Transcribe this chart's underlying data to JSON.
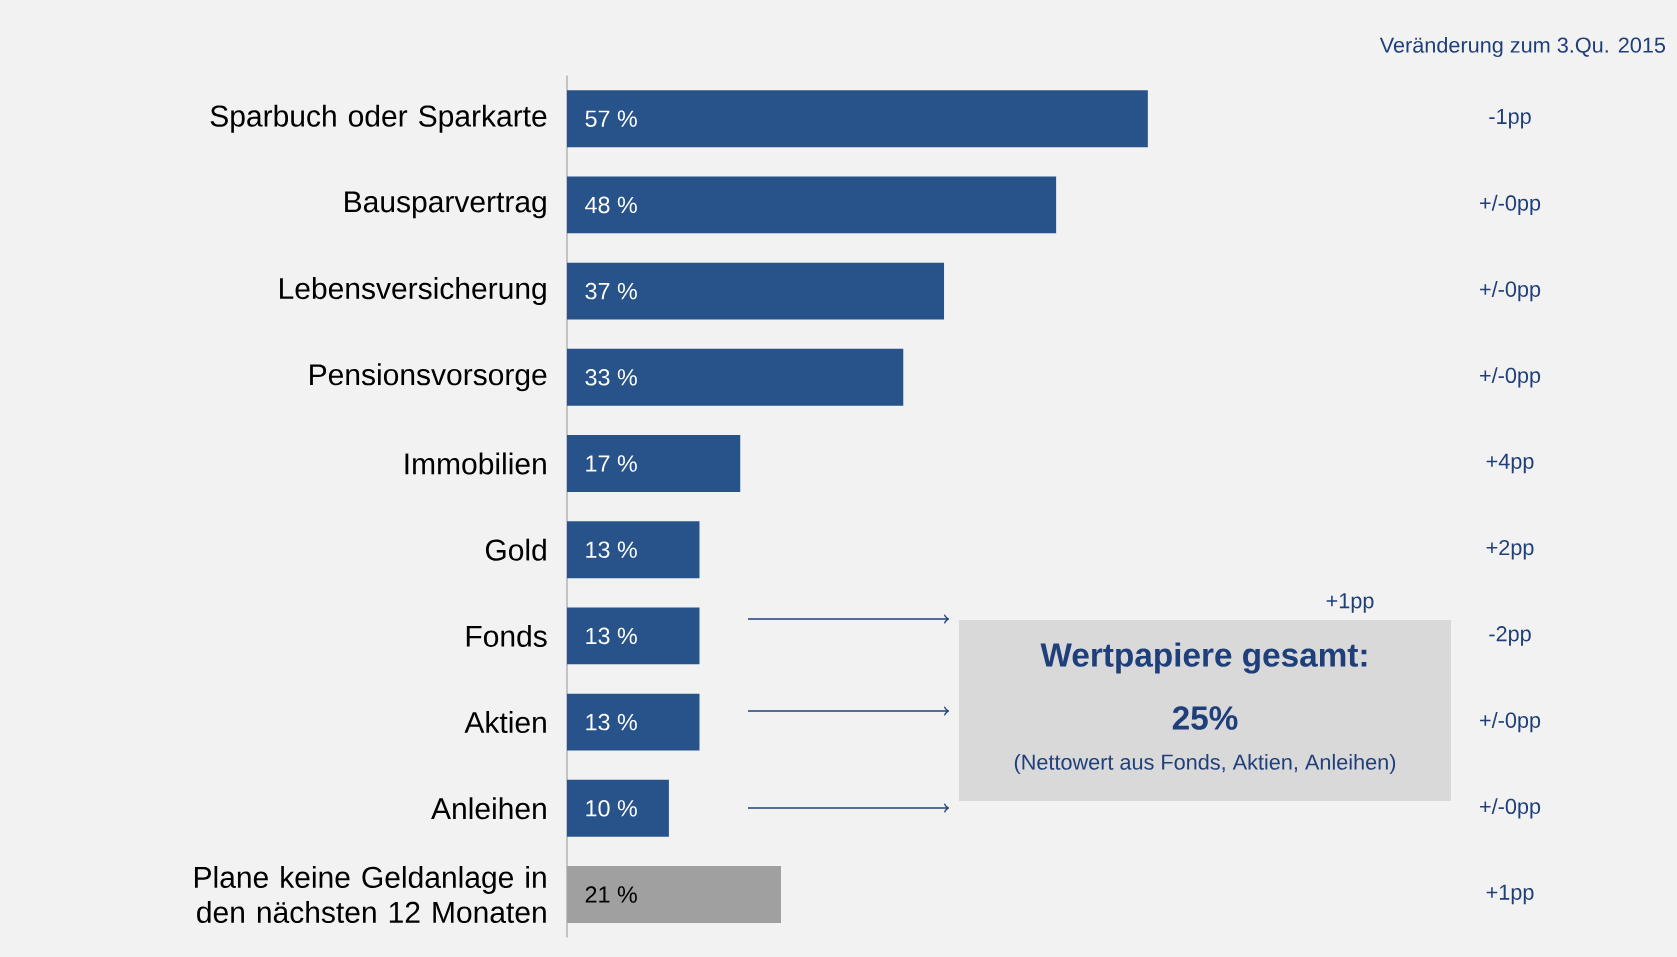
{
  "chart_data": {
    "type": "bar",
    "orientation": "horizontal",
    "tick_labels": "y",
    "categories": [
      "Sparbuch oder Sparkarte",
      "Bausparvertrag",
      "Lebensversicherung",
      "Pensionsvorsorge",
      "Immobilien",
      "Gold",
      "Fonds",
      "Aktien",
      "Anleihen",
      "Plane keine Geldanlage in den nächsten 12 Monaten"
    ],
    "values": [
      57,
      48,
      37,
      33,
      17,
      13,
      13,
      13,
      10,
      21
    ],
    "value_labels": [
      "57 %",
      "48 %",
      "37 %",
      "33 %",
      "17 %",
      "13 %",
      "13 %",
      "13 %",
      "10 %",
      "21 %"
    ],
    "colors": [
      "#27538a",
      "#27538a",
      "#27538a",
      "#27538a",
      "#27538a",
      "#27538a",
      "#27538a",
      "#27538a",
      "#27538a",
      "#a0a0a0"
    ],
    "annotations": [
      "Veränderung zum 3.Qu. 2015",
      "-1pp",
      "+/-0pp",
      "+/-0pp",
      "+/-0pp",
      "+4pp",
      "+2pp",
      "-2pp",
      "+/-0pp",
      "+/-0pp",
      "+1pp",
      "+1pp",
      "Wertpapiere gesamt:",
      "25%",
      "(Nettowert aus Fonds, Aktien, Anleihen)"
    ]
  }
}
